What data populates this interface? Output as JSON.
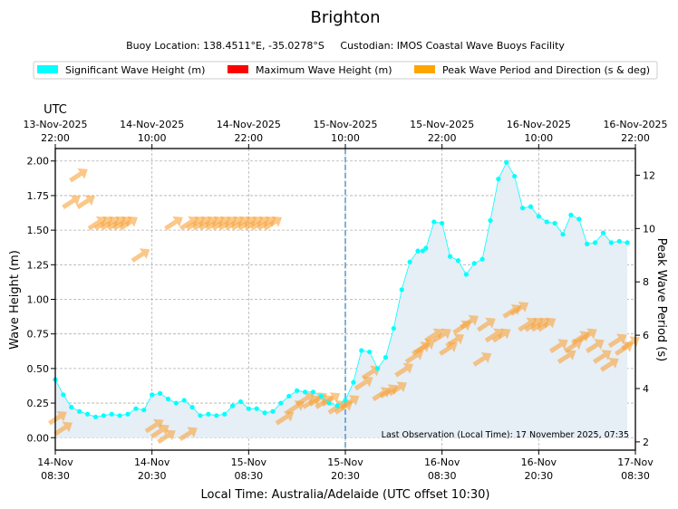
{
  "title": "Brighton",
  "subtitle": "Buoy Location: 138.4511°E, -35.0278°S     Custodian: IMOS Coastal Wave Buoys Facility",
  "legend": [
    {
      "label": "Significant Wave Height (m)",
      "color": "#00ffff"
    },
    {
      "label": "Maximum Wave Height (m)",
      "color": "#ff0000"
    },
    {
      "label": "Peak Wave Period and Direction (s & deg)",
      "color": "#ffa500"
    }
  ],
  "annotation": "Last Observation (Local Time): 17 November 2025, 07:35",
  "chart_data": {
    "type": "line",
    "title": "Brighton",
    "xlabel": "Local Time: Australia/Adelaide (UTC offset 10:30)",
    "ylabel": "Wave Height (m)",
    "y2label": "Peak Wave Period (s)",
    "top_axis_label": "UTC",
    "x_unit": "hours since 14-Nov 08:30 local",
    "xlim": [
      0,
      72
    ],
    "ylim": [
      -0.09,
      2.09
    ],
    "y2lim": [
      1.69,
      13.0
    ],
    "yticks": [
      "0.00",
      "0.25",
      "0.50",
      "0.75",
      "1.00",
      "1.25",
      "1.50",
      "1.75",
      "2.00"
    ],
    "y2ticks": [
      "2",
      "4",
      "6",
      "8",
      "10",
      "12"
    ],
    "bottom_ticks": [
      {
        "x": 0,
        "line1": "14-Nov",
        "line2": "08:30"
      },
      {
        "x": 12,
        "line1": "14-Nov",
        "line2": "20:30"
      },
      {
        "x": 24,
        "line1": "15-Nov",
        "line2": "08:30"
      },
      {
        "x": 36,
        "line1": "15-Nov",
        "line2": "20:30"
      },
      {
        "x": 48,
        "line1": "16-Nov",
        "line2": "08:30"
      },
      {
        "x": 60,
        "line1": "16-Nov",
        "line2": "20:30"
      },
      {
        "x": 72,
        "line1": "17-Nov",
        "line2": "08:30"
      }
    ],
    "top_ticks": [
      {
        "x": 0,
        "line1": "13-Nov-2025",
        "line2": "22:00"
      },
      {
        "x": 12,
        "line1": "14-Nov-2025",
        "line2": "10:00"
      },
      {
        "x": 24,
        "line1": "14-Nov-2025",
        "line2": "22:00"
      },
      {
        "x": 36,
        "line1": "15-Nov-2025",
        "line2": "10:00"
      },
      {
        "x": 48,
        "line1": "15-Nov-2025",
        "line2": "22:00"
      },
      {
        "x": 60,
        "line1": "16-Nov-2025",
        "line2": "10:00"
      },
      {
        "x": 72,
        "line1": "16-Nov-2025",
        "line2": "22:00"
      }
    ],
    "marker_x": 36,
    "series": [
      {
        "name": "Significant Wave Height (m)",
        "x": [
          0.0,
          1.0,
          2.0,
          3.0,
          4.0,
          5.0,
          6.0,
          7.0,
          8.0,
          9.0,
          10.0,
          11.0,
          12.0,
          13.0,
          14.0,
          15.0,
          16.0,
          17.0,
          18.0,
          19.0,
          20.0,
          21.0,
          22.0,
          23.0,
          24.0,
          25.0,
          26.0,
          27.0,
          28.0,
          29.0,
          30.0,
          31.0,
          32.0,
          33.0,
          34.0,
          35.0,
          36.0,
          37.0,
          38.0,
          39.0,
          40.0,
          41.0,
          42.0,
          43.0,
          44.0,
          45.0,
          45.6,
          46.0,
          47.0,
          48.0,
          49.0,
          50.0,
          51.0,
          52.0,
          53.0,
          54.0,
          55.0,
          56.0,
          57.0,
          58.0,
          59.0,
          60.0,
          61.0,
          62.0,
          63.0,
          64.0,
          65.0,
          66.0,
          67.0,
          68.0,
          69.0,
          70.0,
          71.0
        ],
        "values": [
          0.42,
          0.31,
          0.22,
          0.19,
          0.17,
          0.15,
          0.16,
          0.17,
          0.16,
          0.17,
          0.21,
          0.2,
          0.31,
          0.32,
          0.28,
          0.25,
          0.27,
          0.22,
          0.16,
          0.17,
          0.16,
          0.17,
          0.23,
          0.26,
          0.21,
          0.21,
          0.18,
          0.19,
          0.25,
          0.3,
          0.34,
          0.33,
          0.33,
          0.3,
          0.25,
          0.23,
          0.27,
          0.4,
          0.63,
          0.62,
          0.5,
          0.58,
          0.79,
          1.07,
          1.27,
          1.35,
          1.35,
          1.37,
          1.56,
          1.55,
          1.31,
          1.28,
          1.18,
          1.26,
          1.29,
          1.57,
          1.87,
          1.99,
          1.89,
          1.66,
          1.67,
          1.6,
          1.56,
          1.55,
          1.47,
          1.61,
          1.58,
          1.4,
          1.41,
          1.48,
          1.41,
          1.42,
          1.41
        ],
        "color": "#00ffff"
      }
    ],
    "arrows": [
      {
        "x": 2.9,
        "period": 12.0
      },
      {
        "x": 2.0,
        "period": 11.0
      },
      {
        "x": 3.8,
        "period": 11.0
      },
      {
        "x": 5.2,
        "period": 10.2
      },
      {
        "x": 6.0,
        "period": 10.2
      },
      {
        "x": 6.8,
        "period": 10.2
      },
      {
        "x": 7.6,
        "period": 10.2
      },
      {
        "x": 8.3,
        "period": 10.2
      },
      {
        "x": 9.1,
        "period": 10.2
      },
      {
        "x": 10.6,
        "period": 9.0
      },
      {
        "x": 14.7,
        "period": 10.2
      },
      {
        "x": 16.6,
        "period": 10.2
      },
      {
        "x": 17.4,
        "period": 10.2
      },
      {
        "x": 18.2,
        "period": 10.2
      },
      {
        "x": 19.0,
        "period": 10.2
      },
      {
        "x": 19.8,
        "period": 10.2
      },
      {
        "x": 20.6,
        "period": 10.2
      },
      {
        "x": 21.4,
        "period": 10.2
      },
      {
        "x": 22.2,
        "period": 10.2
      },
      {
        "x": 23.0,
        "period": 10.2
      },
      {
        "x": 23.8,
        "period": 10.2
      },
      {
        "x": 24.6,
        "period": 10.2
      },
      {
        "x": 25.4,
        "period": 10.2
      },
      {
        "x": 26.2,
        "period": 10.2
      },
      {
        "x": 27.0,
        "period": 10.2
      },
      {
        "x": 0.3,
        "period": 2.9
      },
      {
        "x": 1.0,
        "period": 2.5
      },
      {
        "x": 12.3,
        "period": 2.6
      },
      {
        "x": 13.0,
        "period": 2.4
      },
      {
        "x": 13.8,
        "period": 2.2
      },
      {
        "x": 16.5,
        "period": 2.3
      },
      {
        "x": 28.5,
        "period": 2.9
      },
      {
        "x": 29.8,
        "period": 3.3
      },
      {
        "x": 31.0,
        "period": 3.6
      },
      {
        "x": 31.8,
        "period": 3.5
      },
      {
        "x": 32.6,
        "period": 3.6
      },
      {
        "x": 33.4,
        "period": 3.5
      },
      {
        "x": 34.2,
        "period": 3.6
      },
      {
        "x": 35.0,
        "period": 3.3
      },
      {
        "x": 35.8,
        "period": 3.3
      },
      {
        "x": 36.6,
        "period": 3.5
      },
      {
        "x": 38.3,
        "period": 4.2
      },
      {
        "x": 39.2,
        "period": 4.6
      },
      {
        "x": 40.5,
        "period": 3.8
      },
      {
        "x": 41.4,
        "period": 3.9
      },
      {
        "x": 42.5,
        "period": 4.0
      },
      {
        "x": 43.3,
        "period": 4.7
      },
      {
        "x": 44.6,
        "period": 5.2
      },
      {
        "x": 45.4,
        "period": 5.5
      },
      {
        "x": 46.0,
        "period": 5.6
      },
      {
        "x": 47.0,
        "period": 6.0
      },
      {
        "x": 48.0,
        "period": 6.0
      },
      {
        "x": 48.8,
        "period": 5.5
      },
      {
        "x": 49.6,
        "period": 5.8
      },
      {
        "x": 50.5,
        "period": 6.3
      },
      {
        "x": 51.4,
        "period": 6.5
      },
      {
        "x": 53.0,
        "period": 5.1
      },
      {
        "x": 53.5,
        "period": 6.4
      },
      {
        "x": 54.5,
        "period": 6.0
      },
      {
        "x": 55.4,
        "period": 6.0
      },
      {
        "x": 56.7,
        "period": 6.9
      },
      {
        "x": 57.6,
        "period": 7.0
      },
      {
        "x": 58.6,
        "period": 6.4
      },
      {
        "x": 59.4,
        "period": 6.4
      },
      {
        "x": 60.2,
        "period": 6.4
      },
      {
        "x": 61.0,
        "period": 6.4
      },
      {
        "x": 62.5,
        "period": 5.6
      },
      {
        "x": 63.5,
        "period": 5.2
      },
      {
        "x": 64.3,
        "period": 5.6
      },
      {
        "x": 65.2,
        "period": 5.9
      },
      {
        "x": 66.1,
        "period": 6.0
      },
      {
        "x": 67.0,
        "period": 5.6
      },
      {
        "x": 67.9,
        "period": 5.2
      },
      {
        "x": 68.8,
        "period": 4.9
      },
      {
        "x": 69.8,
        "period": 5.8
      },
      {
        "x": 70.6,
        "period": 5.5
      },
      {
        "x": 71.4,
        "period": 5.7
      }
    ]
  }
}
